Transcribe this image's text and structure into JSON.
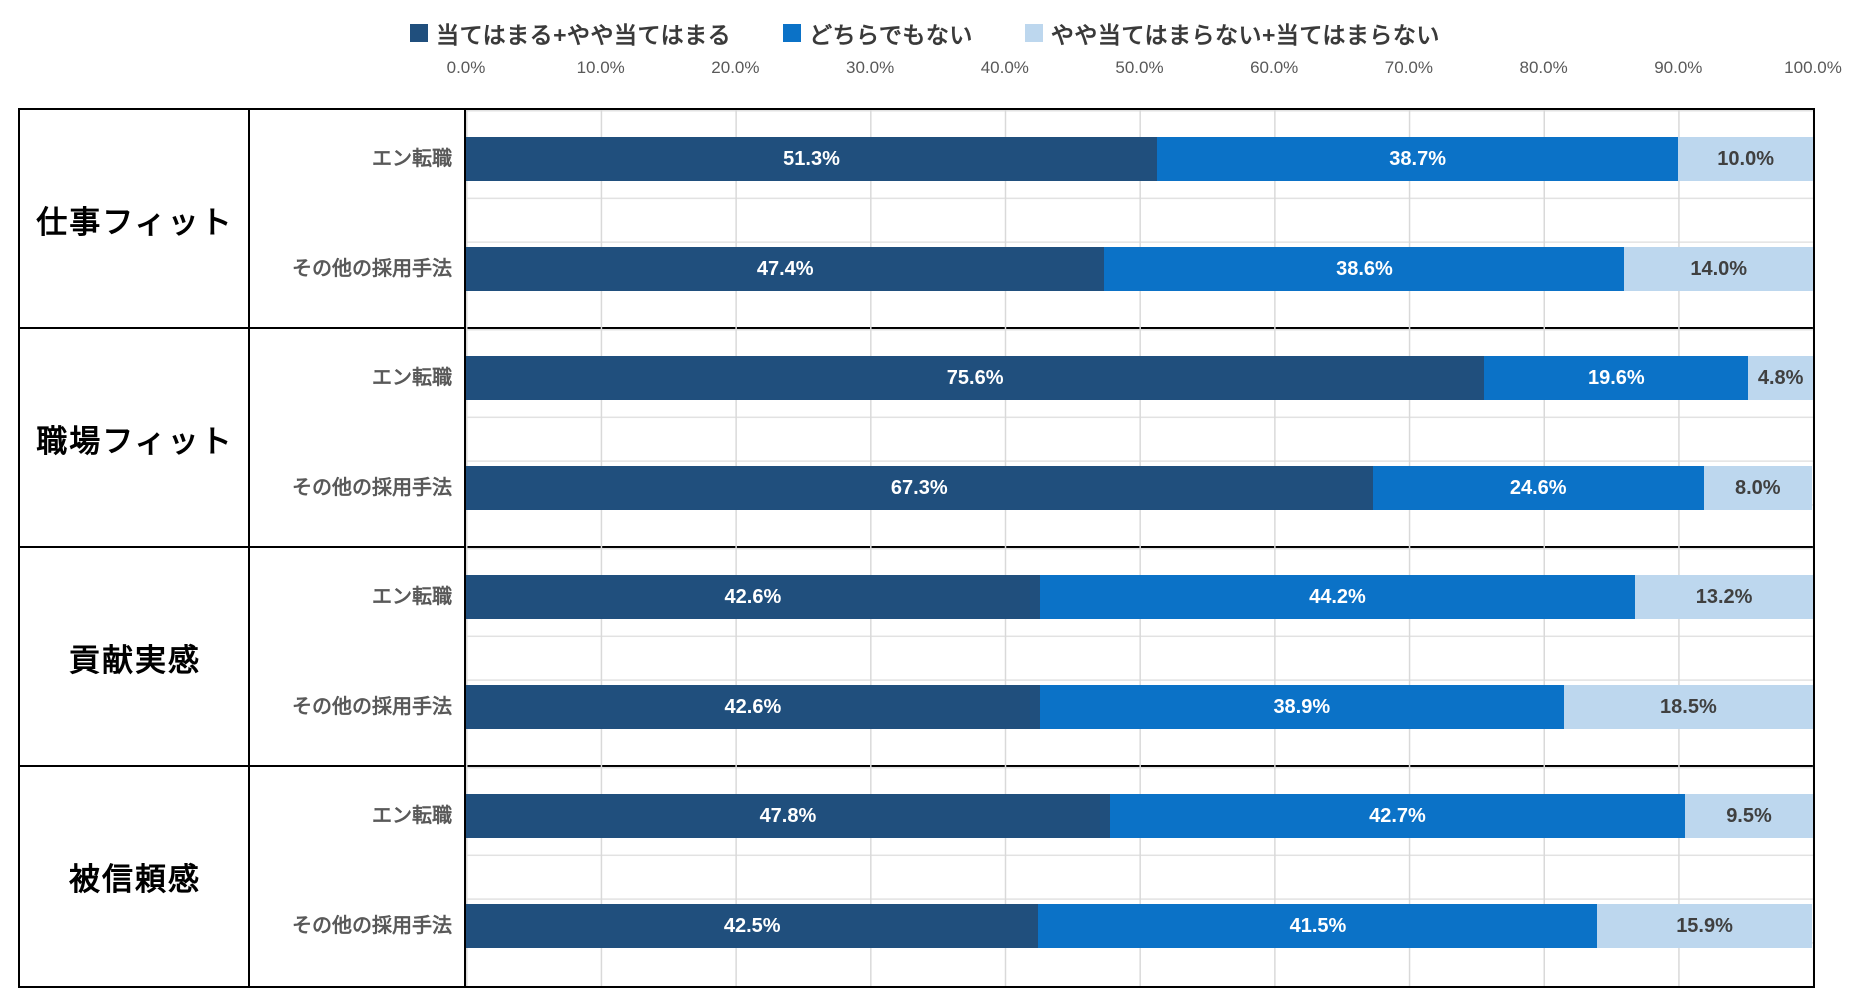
{
  "colors": {
    "agree": "#204f7d",
    "neutral": "#0b72c7",
    "disagree": "#bdd7ee",
    "value_text_on_dark": "#ffffff",
    "value_text_on_light": "#404040",
    "axis_text": "#595959",
    "row_label_text": "#595959",
    "category_text": "#000000",
    "grid_line": "#d9d9d9",
    "table_border": "#000000"
  },
  "legend": {
    "items": [
      {
        "label": "当てはまる+やや当てはまる",
        "color": "#204f7d"
      },
      {
        "label": "どちらでもない",
        "color": "#0b72c7"
      },
      {
        "label": "やや当てはまらない+当てはまらない",
        "color": "#bdd7ee"
      }
    ]
  },
  "axis": {
    "ticks": [
      "0.0%",
      "10.0%",
      "20.0%",
      "30.0%",
      "40.0%",
      "50.0%",
      "60.0%",
      "70.0%",
      "80.0%",
      "90.0%",
      "100.0%"
    ]
  },
  "chart_data": {
    "type": "bar",
    "stacked": true,
    "orientation": "horizontal",
    "xlim": [
      0,
      100
    ],
    "grid": true,
    "legend_position": "top",
    "value_suffix": "%",
    "series_names": [
      "当てはまる+やや当てはまる",
      "どちらでもない",
      "やや当てはまらない+当てはまらない"
    ],
    "groups": [
      {
        "category": "仕事フィット",
        "rows": [
          {
            "label": "エン転職",
            "values": [
              51.3,
              38.7,
              10.0
            ]
          },
          {
            "label": "その他の採用手法",
            "values": [
              47.4,
              38.6,
              14.0
            ]
          }
        ]
      },
      {
        "category": "職場フィット",
        "rows": [
          {
            "label": "エン転職",
            "values": [
              75.6,
              19.6,
              4.8
            ]
          },
          {
            "label": "その他の採用手法",
            "values": [
              67.3,
              24.6,
              8.0
            ]
          }
        ]
      },
      {
        "category": "貢献実感",
        "rows": [
          {
            "label": "エン転職",
            "values": [
              42.6,
              44.2,
              13.2
            ]
          },
          {
            "label": "その他の採用手法",
            "values": [
              42.6,
              38.9,
              18.5
            ]
          }
        ]
      },
      {
        "category": "被信頼感",
        "rows": [
          {
            "label": "エン転職",
            "values": [
              47.8,
              42.7,
              9.5
            ]
          },
          {
            "label": "その他の採用手法",
            "values": [
              42.5,
              41.5,
              15.9
            ]
          }
        ]
      }
    ]
  }
}
